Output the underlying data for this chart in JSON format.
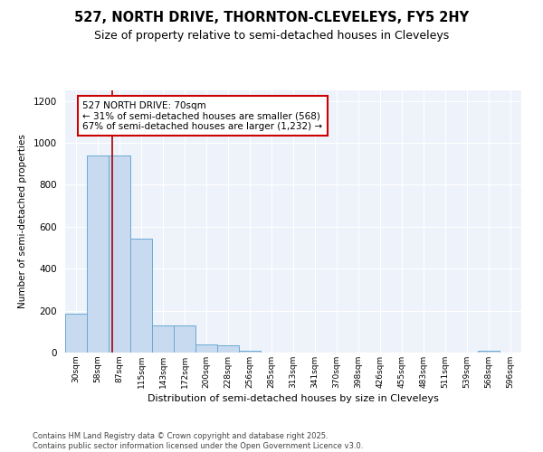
{
  "title1": "527, NORTH DRIVE, THORNTON-CLEVELEYS, FY5 2HY",
  "title2": "Size of property relative to semi-detached houses in Cleveleys",
  "xlabel": "Distribution of semi-detached houses by size in Cleveleys",
  "ylabel": "Number of semi-detached properties",
  "categories": [
    "30sqm",
    "58sqm",
    "87sqm",
    "115sqm",
    "143sqm",
    "172sqm",
    "200sqm",
    "228sqm",
    "256sqm",
    "285sqm",
    "313sqm",
    "341sqm",
    "370sqm",
    "398sqm",
    "426sqm",
    "455sqm",
    "483sqm",
    "511sqm",
    "539sqm",
    "568sqm",
    "596sqm"
  ],
  "values": [
    185,
    940,
    940,
    545,
    130,
    130,
    40,
    35,
    10,
    0,
    0,
    0,
    0,
    0,
    0,
    0,
    0,
    0,
    0,
    10,
    0
  ],
  "bar_color": "#c8daf0",
  "bar_edge_color": "#6aaad4",
  "vline_x": 1.65,
  "vline_color": "#aa0000",
  "annotation_title": "527 NORTH DRIVE: 70sqm",
  "annotation_line2": "← 31% of semi-detached houses are smaller (568)",
  "annotation_line3": "67% of semi-detached houses are larger (1,232) →",
  "annotation_box_edgecolor": "#cc0000",
  "annotation_box_facecolor": "white",
  "ylim": [
    0,
    1250
  ],
  "yticks": [
    0,
    200,
    400,
    600,
    800,
    1000,
    1200
  ],
  "footer1": "Contains HM Land Registry data © Crown copyright and database right 2025.",
  "footer2": "Contains public sector information licensed under the Open Government Licence v3.0.",
  "plot_bg_color": "#eef2fa",
  "grid_color": "white",
  "fig_bg_color": "white"
}
